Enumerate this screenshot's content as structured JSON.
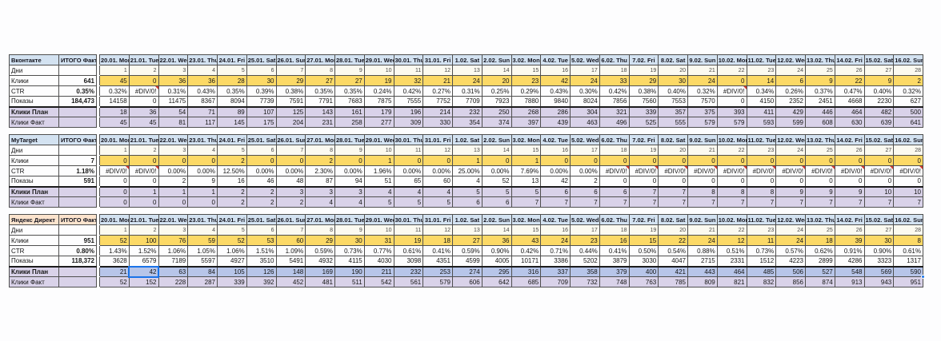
{
  "sheet": {
    "total_header": "ИТОГО Факт",
    "error_value": "#DIV/0!",
    "colors": {
      "header_blue": "#d3e2f1",
      "header_peach": "#fbe3cd",
      "clicks_yellow": "#fcd966",
      "days_cream": "#fcfaf0",
      "plan_fact_lavender": "#d9d2e9",
      "selection_fill": "#b7c5e9",
      "selection_border": "#1a73e8",
      "error_corner_red": "#d63a2f"
    },
    "date_headers": [
      "20.01. Mon",
      "21.01. Tue",
      "22.01. Wed",
      "23.01. Thu",
      "24.01. Fri",
      "25.01. Sat",
      "26.01. Sun",
      "27.01. Mon",
      "28.01. Tue",
      "29.01. Wed",
      "30.01. Thu",
      "31.01. Fri",
      "1.02. Sat",
      "2.02. Sun",
      "3.02. Mon",
      "4.02. Tue",
      "5.02. Wed",
      "6.02. Thu",
      "7.02. Fri",
      "8.02. Sat",
      "9.02. Sun",
      "10.02. Mon",
      "11.02. Tue",
      "12.02. Wed",
      "13.02. Thu",
      "14.02. Fri",
      "15.02. Sat",
      "16.02. Sun"
    ],
    "days": [
      "1",
      "2",
      "3",
      "4",
      "5",
      "6",
      "7",
      "8",
      "9",
      "10",
      "11",
      "12",
      "13",
      "14",
      "15",
      "16",
      "17",
      "18",
      "19",
      "20",
      "21",
      "22",
      "23",
      "24",
      "25",
      "26",
      "27",
      "28"
    ],
    "row_labels": {
      "days": "Дни",
      "clicks": "Клики",
      "ctr": "CTR",
      "impressions": "Показы",
      "plan": "Клики План",
      "fact": "Клики Факт"
    },
    "blocks": [
      {
        "id": "vkontakte",
        "title": "Вконтакте",
        "header_style": "blue",
        "totals": {
          "clicks": "641",
          "ctr": "0.35%",
          "impressions": "184,473"
        },
        "clicks": [
          "45",
          "0",
          "36",
          "36",
          "28",
          "30",
          "29",
          "27",
          "27",
          "19",
          "32",
          "21",
          "24",
          "20",
          "23",
          "42",
          "24",
          "33",
          "29",
          "30",
          "24",
          "0",
          "14",
          "6",
          "9",
          "22",
          "9",
          "2"
        ],
        "ctr": [
          "0.32%",
          "#DIV/0!",
          "0.31%",
          "0.43%",
          "0.35%",
          "0.39%",
          "0.38%",
          "0.35%",
          "0.35%",
          "0.24%",
          "0.42%",
          "0.27%",
          "0.31%",
          "0.25%",
          "0.29%",
          "0.43%",
          "0.30%",
          "0.42%",
          "0.38%",
          "0.40%",
          "0.32%",
          "#DIV/0!",
          "0.34%",
          "0.26%",
          "0.37%",
          "0.47%",
          "0.40%",
          "0.32%"
        ],
        "impressions": [
          "14158",
          "0",
          "11475",
          "8367",
          "8094",
          "7739",
          "7591",
          "7791",
          "7683",
          "7875",
          "7555",
          "7752",
          "7709",
          "7923",
          "7880",
          "9840",
          "8024",
          "7856",
          "7560",
          "7553",
          "7570",
          "0",
          "4150",
          "2352",
          "2451",
          "4668",
          "2230",
          "627"
        ],
        "plan": [
          "18",
          "36",
          "54",
          "71",
          "89",
          "107",
          "125",
          "143",
          "161",
          "179",
          "196",
          "214",
          "232",
          "250",
          "268",
          "286",
          "304",
          "321",
          "339",
          "357",
          "375",
          "393",
          "411",
          "429",
          "446",
          "464",
          "482",
          "500"
        ],
        "fact": [
          "45",
          "45",
          "81",
          "117",
          "145",
          "175",
          "204",
          "231",
          "258",
          "277",
          "309",
          "330",
          "354",
          "374",
          "397",
          "439",
          "463",
          "496",
          "525",
          "555",
          "579",
          "579",
          "593",
          "599",
          "608",
          "630",
          "639",
          "641"
        ]
      },
      {
        "id": "mytarget",
        "title": "MyTarget",
        "header_style": "blue",
        "totals": {
          "clicks": "7",
          "ctr": "1.18%",
          "impressions": "591"
        },
        "clicks": [
          "0",
          "0",
          "0",
          "0",
          "2",
          "0",
          "0",
          "2",
          "0",
          "1",
          "0",
          "0",
          "1",
          "0",
          "1",
          "0",
          "0",
          "0",
          "0",
          "0",
          "0",
          "0",
          "0",
          "0",
          "0",
          "0",
          "0",
          "0"
        ],
        "ctr": [
          "#DIV/0!",
          "#DIV/0!",
          "0.00%",
          "0.00%",
          "12.50%",
          "0.00%",
          "0.00%",
          "2.30%",
          "0.00%",
          "1.96%",
          "0.00%",
          "0.00%",
          "25.00%",
          "0.00%",
          "7.69%",
          "0.00%",
          "0.00%",
          "#DIV/0!",
          "#DIV/0!",
          "#DIV/0!",
          "#DIV/0!",
          "#DIV/0!",
          "#DIV/0!",
          "#DIV/0!",
          "#DIV/0!",
          "#DIV/0!",
          "#DIV/0!",
          "#DIV/0!"
        ],
        "impressions": [
          "0",
          "0",
          "2",
          "9",
          "16",
          "46",
          "48",
          "87",
          "94",
          "51",
          "65",
          "60",
          "4",
          "52",
          "13",
          "42",
          "2",
          "0",
          "0",
          "0",
          "0",
          "0",
          "0",
          "0",
          "0",
          "0",
          "0",
          "0"
        ],
        "plan": [
          "0",
          "1",
          "1",
          "1",
          "2",
          "2",
          "3",
          "3",
          "3",
          "4",
          "4",
          "4",
          "5",
          "5",
          "5",
          "6",
          "6",
          "6",
          "7",
          "7",
          "8",
          "8",
          "8",
          "9",
          "9",
          "9",
          "10",
          "10"
        ],
        "fact": [
          "0",
          "0",
          "0",
          "0",
          "2",
          "2",
          "2",
          "4",
          "4",
          "5",
          "5",
          "5",
          "6",
          "6",
          "7",
          "7",
          "7",
          "7",
          "7",
          "7",
          "7",
          "7",
          "7",
          "7",
          "7",
          "7",
          "7",
          "7"
        ]
      },
      {
        "id": "yandex-direct",
        "title": "Яндекс Директ",
        "header_style": "peach",
        "totals": {
          "clicks": "951",
          "ctr": "0.80%",
          "impressions": "118,372"
        },
        "clicks": [
          "52",
          "100",
          "76",
          "59",
          "52",
          "53",
          "60",
          "29",
          "30",
          "31",
          "19",
          "18",
          "27",
          "36",
          "43",
          "24",
          "23",
          "16",
          "15",
          "22",
          "24",
          "12",
          "11",
          "24",
          "18",
          "39",
          "30",
          "8"
        ],
        "ctr": [
          "1.43%",
          "1.52%",
          "1.06%",
          "1.05%",
          "1.06%",
          "1.51%",
          "1.09%",
          "0.59%",
          "0.73%",
          "0.77%",
          "0.61%",
          "0.41%",
          "0.59%",
          "0.90%",
          "0.42%",
          "0.71%",
          "0.44%",
          "0.41%",
          "0.50%",
          "0.54%",
          "0.88%",
          "0.51%",
          "0.73%",
          "0.57%",
          "0.62%",
          "0.91%",
          "0.90%",
          "0.61%"
        ],
        "impressions": [
          "3628",
          "6579",
          "7189",
          "5597",
          "4927",
          "3510",
          "5491",
          "4932",
          "4115",
          "4030",
          "3098",
          "4351",
          "4599",
          "4005",
          "10171",
          "3386",
          "5202",
          "3879",
          "3030",
          "4047",
          "2715",
          "2331",
          "1512",
          "4223",
          "2899",
          "4286",
          "3323",
          "1317"
        ],
        "plan": [
          "21",
          "42",
          "63",
          "84",
          "105",
          "126",
          "148",
          "169",
          "190",
          "211",
          "232",
          "253",
          "274",
          "295",
          "316",
          "337",
          "358",
          "379",
          "400",
          "421",
          "443",
          "464",
          "485",
          "506",
          "527",
          "548",
          "569",
          "590"
        ],
        "fact": [
          "52",
          "152",
          "228",
          "287",
          "339",
          "392",
          "452",
          "481",
          "511",
          "542",
          "561",
          "579",
          "606",
          "642",
          "685",
          "709",
          "732",
          "748",
          "763",
          "785",
          "809",
          "821",
          "832",
          "856",
          "874",
          "913",
          "943",
          "951"
        ]
      }
    ],
    "selection": {
      "block_index": 2,
      "row": "plan",
      "active_col": 1,
      "handle_col": 27
    }
  }
}
